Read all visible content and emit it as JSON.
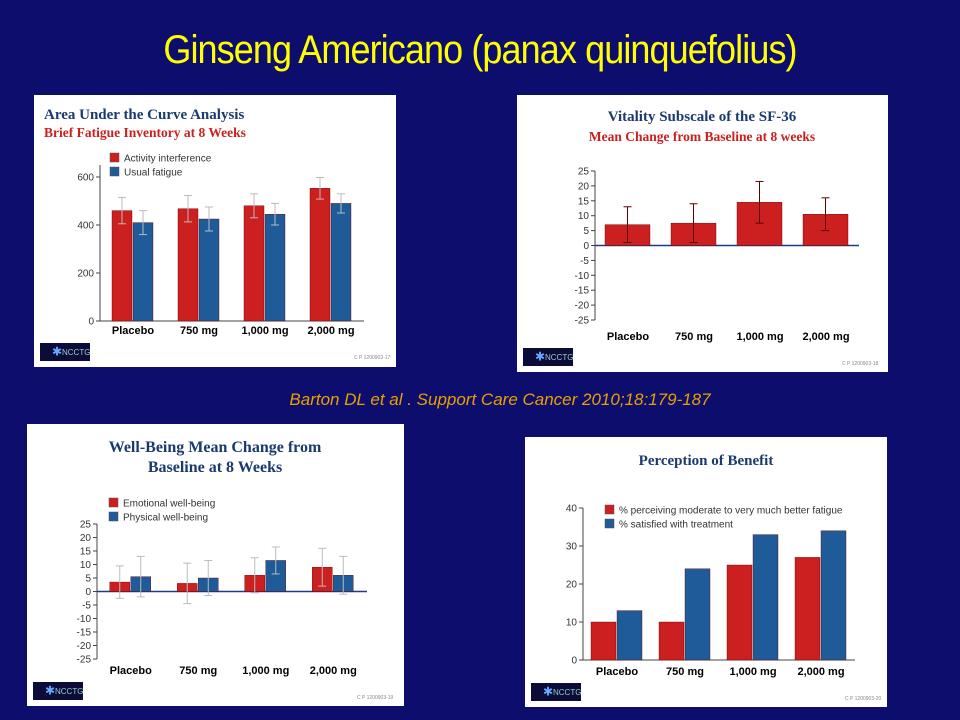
{
  "slide": {
    "title": "Ginseng Americano (panax quinquefolius)",
    "citation": "Barton DL et al . Support Care Cancer 2010;18:179-187"
  },
  "colors": {
    "red": "#cc1f1f",
    "blue": "#1f5b99",
    "errorbar": "#bbbbbb"
  },
  "chart_data": [
    {
      "id": "auc",
      "type": "bar",
      "title": "Area Under the Curve Analysis",
      "subtitle": "Brief Fatigue Inventory at 8 Weeks",
      "categories": [
        "Placebo",
        "750 mg",
        "1,000 mg",
        "2,000 mg"
      ],
      "series": [
        {
          "name": "Activity interference",
          "color": "#cc1f1f",
          "values": [
            460,
            468,
            480,
            553
          ],
          "err": [
            55,
            55,
            50,
            45
          ]
        },
        {
          "name": "Usual fatigue",
          "color": "#1f5b99",
          "values": [
            410,
            425,
            445,
            490
          ],
          "err": [
            50,
            50,
            45,
            40
          ]
        }
      ],
      "yticks": [
        0,
        200,
        400,
        600
      ],
      "ylim": [
        0,
        650
      ],
      "legend": "top-left",
      "logo": "NCCTG",
      "code": "C P 1200903-17"
    },
    {
      "id": "vitality",
      "type": "bar",
      "title": "Vitality Subscale of the SF-36",
      "subtitle": "Mean Change from Baseline at 8 weeks",
      "categories": [
        "Placebo",
        "750 mg",
        "1,000 mg",
        "2,000 mg"
      ],
      "series": [
        {
          "color": "#cc1f1f",
          "values": [
            7,
            7.5,
            14.5,
            10.5
          ],
          "err": [
            6,
            6.5,
            7,
            5.5
          ]
        }
      ],
      "yticks": [
        25,
        20,
        15,
        10,
        5,
        0,
        -5,
        -10,
        -15,
        -20,
        -25
      ],
      "ylim": [
        -25,
        25
      ],
      "logo": "NCCTG",
      "code": "C P 1200903-18"
    },
    {
      "id": "wellbeing",
      "type": "bar",
      "title": "Well-Being Mean Change from",
      "subtitle": "Baseline at 8 Weeks",
      "categories": [
        "Placebo",
        "750 mg",
        "1,000 mg",
        "2,000 mg"
      ],
      "series": [
        {
          "name": "Emotional well-being",
          "color": "#cc1f1f",
          "values": [
            3.5,
            3,
            6,
            9
          ],
          "err": [
            6,
            7.5,
            6.5,
            7
          ]
        },
        {
          "name": "Physical well-being",
          "color": "#1f5b99",
          "values": [
            5.5,
            5,
            11.5,
            6
          ],
          "err": [
            7.5,
            6.5,
            5,
            7
          ]
        }
      ],
      "yticks": [
        25,
        20,
        15,
        10,
        5,
        0,
        -5,
        -10,
        -15,
        -20,
        -25
      ],
      "ylim": [
        -25,
        25
      ],
      "legend": "top-left",
      "logo": "NCCTG",
      "code": "C P 1200903-19"
    },
    {
      "id": "benefit",
      "type": "bar",
      "title": "Perception of Benefit",
      "categories": [
        "Placebo",
        "750 mg",
        "1,000 mg",
        "2,000 mg"
      ],
      "series": [
        {
          "name": "% perceiving moderate to very much better fatigue",
          "color": "#cc1f1f",
          "values": [
            10,
            10,
            25,
            27
          ]
        },
        {
          "name": "% satisfied with treatment",
          "color": "#1f5b99",
          "values": [
            13,
            24,
            33,
            34
          ]
        }
      ],
      "yticks": [
        0,
        10,
        20,
        30,
        40
      ],
      "ylim": [
        0,
        40
      ],
      "legend": "top-left",
      "logo": "NCCTG",
      "code": "C P 1200903-20"
    }
  ]
}
